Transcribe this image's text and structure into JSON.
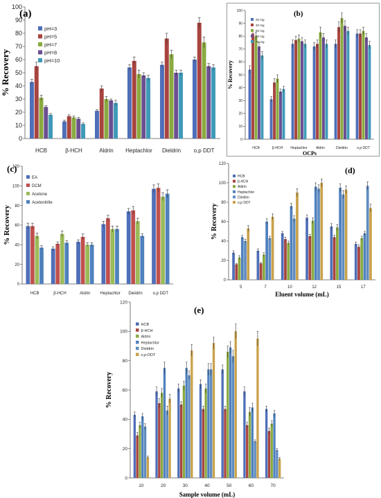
{
  "chart_data": [
    {
      "panel": "a",
      "type": "bar",
      "title": "(a)",
      "xlabel": "",
      "ylabel": "% Recovery",
      "ylim": [
        0,
        100
      ],
      "ticks": [
        0,
        10,
        20,
        30,
        40,
        50,
        60,
        70,
        80,
        90,
        100
      ],
      "grid": false,
      "legend": "top-left",
      "categories": [
        "HCB",
        "β-HCH",
        "Aldrin",
        "Heptachlor",
        "Dieldrin",
        "o,p DDT"
      ],
      "series": [
        {
          "name": "pH=3",
          "color": "#4f6fb8",
          "values": [
            43,
            13,
            21,
            54,
            56,
            60
          ]
        },
        {
          "name": "pH=5",
          "color": "#a8443f",
          "values": [
            55,
            17,
            38,
            59,
            76,
            88
          ]
        },
        {
          "name": "pH=7",
          "color": "#8aaa3f",
          "values": [
            31,
            16,
            30,
            49,
            64,
            73
          ]
        },
        {
          "name": "pH=8",
          "color": "#6b4f92",
          "values": [
            24,
            15,
            29,
            48,
            50,
            55
          ]
        },
        {
          "name": "pH=10",
          "color": "#3f9ab8",
          "values": [
            18,
            11,
            27,
            46,
            50,
            54
          ]
        }
      ],
      "errors": [
        [
          2,
          1,
          1,
          2,
          2,
          2
        ],
        [
          3,
          1,
          2,
          3,
          4,
          4
        ],
        [
          2,
          1,
          2,
          3,
          3,
          4
        ],
        [
          1,
          1,
          1,
          2,
          2,
          2
        ],
        [
          1,
          1,
          2,
          2,
          2,
          2
        ]
      ]
    },
    {
      "panel": "b",
      "type": "bar",
      "title": "(b)",
      "xlabel": "OCPs",
      "ylabel": "% Recovery",
      "ylim": [
        0,
        100
      ],
      "ticks": [
        0,
        10,
        20,
        30,
        40,
        50,
        60,
        70,
        80,
        90,
        100
      ],
      "grid": false,
      "legend": "top-left",
      "categories": [
        "HCB",
        "β-HCH",
        "Heptachlor",
        "Aldrin",
        "Dieldrin",
        "o,p DDT"
      ],
      "series": [
        {
          "name": "20 mg",
          "color": "#4f6fb8",
          "values": [
            54,
            31,
            74,
            72,
            74,
            82
          ]
        },
        {
          "name": "40 mg",
          "color": "#a8443f",
          "values": [
            82,
            44,
            77,
            74,
            87,
            82
          ]
        },
        {
          "name": "50 mg",
          "color": "#8aaa3f",
          "values": [
            80,
            47,
            78,
            83,
            94,
            84
          ]
        },
        {
          "name": "60 mg",
          "color": "#6b4f92",
          "values": [
            72,
            37,
            76,
            79,
            88,
            79
          ]
        },
        {
          "name": "70 mg",
          "color": "#3f9ab8",
          "values": [
            65,
            39,
            74,
            74,
            84,
            73
          ]
        }
      ],
      "errors": [
        [
          3,
          2,
          3,
          3,
          3,
          3
        ],
        [
          3,
          3,
          3,
          3,
          4,
          3
        ],
        [
          3,
          3,
          3,
          4,
          4,
          3
        ],
        [
          3,
          2,
          3,
          3,
          4,
          3
        ],
        [
          3,
          2,
          3,
          3,
          3,
          3
        ]
      ]
    },
    {
      "panel": "c",
      "type": "bar",
      "title": "(c)",
      "xlabel": "",
      "ylabel": "% Recovery",
      "ylim": [
        0,
        120
      ],
      "ticks": [
        0,
        20,
        40,
        60,
        80,
        100,
        120
      ],
      "grid": false,
      "legend": "top-left",
      "categories": [
        "HCB",
        "β-HCH",
        "Aldrin",
        "Heptachlor",
        "Dieldrin",
        "o,p DDT"
      ],
      "series": [
        {
          "name": "EA",
          "color": "#4f6fb8",
          "values": [
            59,
            36,
            43,
            61,
            74,
            97
          ]
        },
        {
          "name": "DCM",
          "color": "#c0504d",
          "values": [
            59,
            41,
            48,
            67,
            75,
            98
          ]
        },
        {
          "name": "Acetone",
          "color": "#9bbb59",
          "values": [
            49,
            51,
            40,
            56,
            64,
            89
          ]
        },
        {
          "name": "Acetonitrile",
          "color": "#4f81bd",
          "values": [
            37,
            42,
            40,
            56,
            49,
            92
          ]
        }
      ],
      "errors": [
        [
          3,
          2,
          2,
          3,
          3,
          4
        ],
        [
          3,
          2,
          3,
          3,
          4,
          4
        ],
        [
          3,
          3,
          2,
          3,
          3,
          4
        ],
        [
          2,
          2,
          2,
          3,
          2,
          4
        ]
      ]
    },
    {
      "panel": "d",
      "type": "bar",
      "title": "(d)",
      "xlabel": "Eluent volume (mL)",
      "ylabel": "% Recovery",
      "ylim": [
        0,
        120
      ],
      "ticks": [
        0,
        20,
        40,
        60,
        80,
        100,
        120
      ],
      "grid": false,
      "legend": "top-left",
      "categories": [
        "5",
        "7",
        "10",
        "12",
        "15",
        "17"
      ],
      "series": [
        {
          "name": "HCB",
          "color": "#4f6fb8",
          "values": [
            28,
            30,
            48,
            64,
            55,
            37
          ]
        },
        {
          "name": "β-HCH",
          "color": "#a8443f",
          "values": [
            16,
            17,
            42,
            45,
            44,
            34
          ]
        },
        {
          "name": "Aldrin",
          "color": "#8aaa3f",
          "values": [
            23,
            26,
            38,
            61,
            54,
            43
          ]
        },
        {
          "name": "Heptachlor",
          "color": "#4f81bd",
          "values": [
            44,
            60,
            76,
            96,
            95,
            48
          ]
        },
        {
          "name": "Dieldrin",
          "color": "#5f8cc0",
          "values": [
            40,
            43,
            63,
            94,
            88,
            97
          ]
        },
        {
          "name": "o,p DDT",
          "color": "#c9a24b",
          "values": [
            53,
            65,
            90,
            100,
            93,
            74
          ]
        }
      ],
      "errors": [
        [
          2,
          2,
          2,
          3,
          3,
          2
        ],
        [
          1,
          1,
          2,
          2,
          2,
          2
        ],
        [
          2,
          2,
          2,
          3,
          3,
          2
        ],
        [
          2,
          3,
          3,
          4,
          4,
          2
        ],
        [
          2,
          2,
          3,
          4,
          4,
          4
        ],
        [
          3,
          3,
          4,
          4,
          4,
          4
        ]
      ]
    },
    {
      "panel": "e",
      "type": "bar",
      "title": "(e)",
      "xlabel": "Sample volume (mL)",
      "ylabel": "% Recovery",
      "ylim": [
        0,
        120
      ],
      "ticks": [
        0,
        20,
        40,
        60,
        80,
        100,
        120
      ],
      "grid": false,
      "legend": "top-left",
      "categories": [
        "10",
        "20",
        "30",
        "40",
        "50",
        "60",
        "70"
      ],
      "series": [
        {
          "name": "HCB",
          "color": "#4f6fb8",
          "values": [
            43,
            59,
            61,
            64,
            74,
            59,
            47
          ]
        },
        {
          "name": "β-HCH",
          "color": "#a8443f",
          "values": [
            29,
            51,
            50,
            47,
            47,
            36,
            32
          ]
        },
        {
          "name": "Aldrin",
          "color": "#8aaa3f",
          "values": [
            36,
            58,
            63,
            61,
            86,
            45,
            37
          ]
        },
        {
          "name": "Heptachlor",
          "color": "#4f81bd",
          "values": [
            42,
            75,
            75,
            74,
            89,
            48,
            44
          ]
        },
        {
          "name": "Dieldrin",
          "color": "#5f8cc0",
          "values": [
            35,
            46,
            70,
            74,
            83,
            25,
            19
          ]
        },
        {
          "name": "o,p-DDT",
          "color": "#c9a24b",
          "values": [
            14,
            54,
            87,
            92,
            100,
            95,
            13
          ]
        }
      ],
      "errors": [
        [
          2,
          3,
          3,
          3,
          3,
          3,
          2
        ],
        [
          2,
          3,
          2,
          2,
          2,
          2,
          2
        ],
        [
          2,
          3,
          3,
          3,
          4,
          3,
          2
        ],
        [
          2,
          4,
          4,
          4,
          4,
          3,
          2
        ],
        [
          2,
          3,
          3,
          4,
          4,
          1,
          1
        ],
        [
          1,
          3,
          4,
          4,
          5,
          5,
          1
        ]
      ]
    }
  ]
}
